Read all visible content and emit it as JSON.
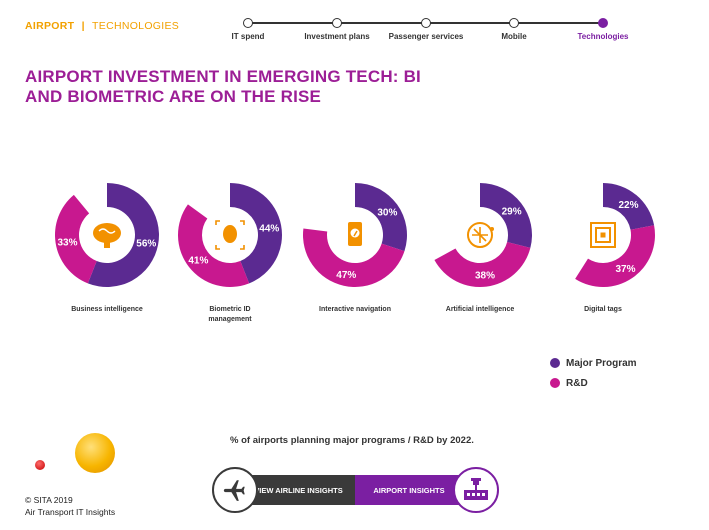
{
  "header": {
    "section": "AIRPORT",
    "separator": "|",
    "subsection": "TECHNOLOGIES"
  },
  "timeline": {
    "steps": [
      "IT spend",
      "Investment plans",
      "Passenger services",
      "Mobile",
      "Technologies"
    ],
    "active_index": 4
  },
  "title": "AIRPORT INVESTMENT IN EMERGING TECH: BI AND BIOMETRIC ARE ON THE RISE",
  "chart_data": {
    "type": "pie",
    "series": [
      {
        "name": "Major Program",
        "color": "#5b2a91"
      },
      {
        "name": "R&D",
        "color": "#c8188f"
      }
    ],
    "categories": [
      "Business intelligence",
      "Biometric ID management",
      "Interactive navigation",
      "Artificial intelligence",
      "Digital tags"
    ],
    "major_program": [
      56,
      44,
      30,
      29,
      22
    ],
    "rd": [
      33,
      41,
      47,
      38,
      37
    ],
    "icons": [
      "brain-icon",
      "face-scan-icon",
      "phone-compass-icon",
      "ai-circuit-brain-icon",
      "rfid-tag-icon"
    ],
    "value_suffix": "%"
  },
  "legend": {
    "items": [
      {
        "label": "Major Program",
        "color": "#5b2a91"
      },
      {
        "label": "R&D",
        "color": "#c8188f"
      }
    ]
  },
  "note": "% of airports planning major programs / R&D by 2022.",
  "footer": {
    "line1": "© SITA 2019",
    "line2": "Air Transport IT Insights"
  },
  "buttons": {
    "airline": "VIEW AIRLINE INSIGHTS",
    "airport": "AIRPORT INSIGHTS"
  },
  "colors": {
    "accent_orange": "#f2a100",
    "title_magenta": "#9c1e96",
    "major": "#5b2a91",
    "rd": "#c8188f",
    "icon_orange": "#f29100"
  }
}
